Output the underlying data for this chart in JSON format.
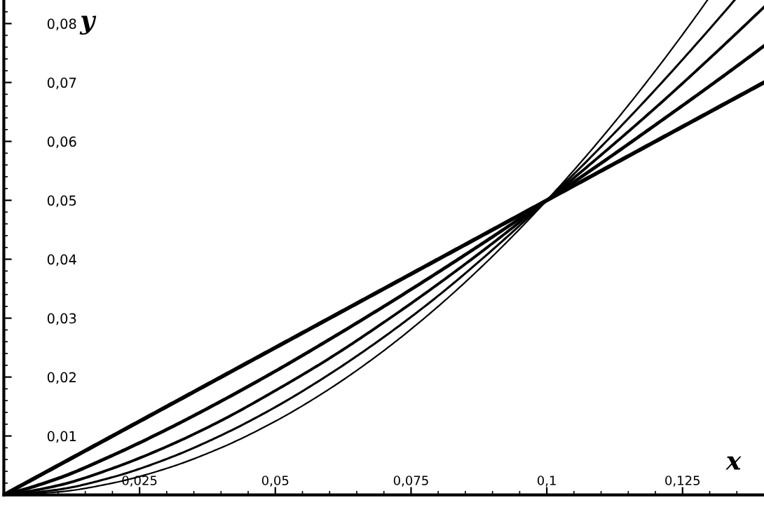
{
  "chart_data": {
    "type": "line",
    "xlabel": "x",
    "ylabel": "y",
    "xlim": [
      0,
      0.14
    ],
    "ylim": [
      0,
      0.084
    ],
    "xticks": [
      {
        "value": 0.005,
        "label": null
      },
      {
        "value": 0.01,
        "label": null
      },
      {
        "value": 0.015,
        "label": null
      },
      {
        "value": 0.02,
        "label": null
      },
      {
        "value": 0.025,
        "label": "0,025"
      },
      {
        "value": 0.03,
        "label": null
      },
      {
        "value": 0.035,
        "label": null
      },
      {
        "value": 0.04,
        "label": null
      },
      {
        "value": 0.045,
        "label": null
      },
      {
        "value": 0.05,
        "label": "0,05"
      },
      {
        "value": 0.055,
        "label": null
      },
      {
        "value": 0.06,
        "label": null
      },
      {
        "value": 0.065,
        "label": null
      },
      {
        "value": 0.07,
        "label": null
      },
      {
        "value": 0.075,
        "label": "0,075"
      },
      {
        "value": 0.08,
        "label": null
      },
      {
        "value": 0.085,
        "label": null
      },
      {
        "value": 0.09,
        "label": null
      },
      {
        "value": 0.095,
        "label": null
      },
      {
        "value": 0.1,
        "label": "0,1"
      },
      {
        "value": 0.105,
        "label": null
      },
      {
        "value": 0.11,
        "label": null
      },
      {
        "value": 0.115,
        "label": null
      },
      {
        "value": 0.12,
        "label": null
      },
      {
        "value": 0.125,
        "label": "0,125"
      },
      {
        "value": 0.13,
        "label": null
      },
      {
        "value": 0.135,
        "label": null
      }
    ],
    "yticks": [
      {
        "value": 0.002,
        "label": null
      },
      {
        "value": 0.004,
        "label": null
      },
      {
        "value": 0.006,
        "label": null
      },
      {
        "value": 0.008,
        "label": null
      },
      {
        "value": 0.01,
        "label": "0,01"
      },
      {
        "value": 0.012,
        "label": null
      },
      {
        "value": 0.014,
        "label": null
      },
      {
        "value": 0.016,
        "label": null
      },
      {
        "value": 0.018,
        "label": null
      },
      {
        "value": 0.02,
        "label": "0,02"
      },
      {
        "value": 0.022,
        "label": null
      },
      {
        "value": 0.024,
        "label": null
      },
      {
        "value": 0.026,
        "label": null
      },
      {
        "value": 0.028,
        "label": null
      },
      {
        "value": 0.03,
        "label": "0,03"
      },
      {
        "value": 0.032,
        "label": null
      },
      {
        "value": 0.034,
        "label": null
      },
      {
        "value": 0.036,
        "label": null
      },
      {
        "value": 0.038,
        "label": null
      },
      {
        "value": 0.04,
        "label": "0,04"
      },
      {
        "value": 0.042,
        "label": null
      },
      {
        "value": 0.044,
        "label": null
      },
      {
        "value": 0.046,
        "label": null
      },
      {
        "value": 0.048,
        "label": null
      },
      {
        "value": 0.05,
        "label": "0,05"
      },
      {
        "value": 0.052,
        "label": null
      },
      {
        "value": 0.054,
        "label": null
      },
      {
        "value": 0.056,
        "label": null
      },
      {
        "value": 0.058,
        "label": null
      },
      {
        "value": 0.06,
        "label": "0,06"
      },
      {
        "value": 0.062,
        "label": null
      },
      {
        "value": 0.064,
        "label": null
      },
      {
        "value": 0.066,
        "label": null
      },
      {
        "value": 0.068,
        "label": null
      },
      {
        "value": 0.07,
        "label": "0,07"
      },
      {
        "value": 0.072,
        "label": null
      },
      {
        "value": 0.074,
        "label": null
      },
      {
        "value": 0.076,
        "label": null
      },
      {
        "value": 0.078,
        "label": null
      },
      {
        "value": 0.08,
        "label": "0,08"
      },
      {
        "value": 0.082,
        "label": null
      }
    ],
    "grid": false,
    "marker": "none",
    "line_style": "solid",
    "series": [
      {
        "color": "#000000",
        "x": [
          0,
          0.01,
          0.02,
          0.03,
          0.04,
          0.05,
          0.06,
          0.07,
          0.08,
          0.09,
          0.1,
          0.11,
          0.12,
          0.13,
          0.14
        ],
        "values": [
          0,
          0.005,
          0.01,
          0.015,
          0.02,
          0.025,
          0.03,
          0.035,
          0.04,
          0.045,
          0.05,
          0.055,
          0.06,
          0.065,
          0.07
        ]
      },
      {
        "color": "#000000",
        "x": [
          0,
          0.01,
          0.02,
          0.03,
          0.04,
          0.05,
          0.06,
          0.07,
          0.08,
          0.09,
          0.1,
          0.11,
          0.12,
          0.13,
          0.14
        ],
        "values": [
          0,
          0.0028,
          0.0067,
          0.0111,
          0.0159,
          0.021,
          0.0264,
          0.032,
          0.0378,
          0.0438,
          0.05,
          0.0563,
          0.0628,
          0.0694,
          0.0762
        ]
      },
      {
        "color": "#000000",
        "x": [
          0,
          0.01,
          0.02,
          0.03,
          0.04,
          0.05,
          0.06,
          0.07,
          0.08,
          0.09,
          0.1,
          0.11,
          0.12,
          0.13,
          0.14
        ],
        "values": [
          0,
          0.0016,
          0.0045,
          0.0082,
          0.0126,
          0.0177,
          0.0232,
          0.0293,
          0.0358,
          0.0427,
          0.05,
          0.0577,
          0.0657,
          0.0741,
          0.0828
        ]
      },
      {
        "color": "#000000",
        "x": [
          0,
          0.01,
          0.02,
          0.03,
          0.04,
          0.05,
          0.06,
          0.07,
          0.08,
          0.09,
          0.1,
          0.11,
          0.12,
          0.13,
          0.1346
        ],
        "values": [
          0,
          0.0009,
          0.003,
          0.0061,
          0.0101,
          0.0149,
          0.0205,
          0.0268,
          0.0338,
          0.0416,
          0.05,
          0.0591,
          0.0688,
          0.0791,
          0.084
        ]
      },
      {
        "color": "#000000",
        "x": [
          0,
          0.01,
          0.02,
          0.03,
          0.04,
          0.05,
          0.06,
          0.07,
          0.08,
          0.09,
          0.1,
          0.11,
          0.12,
          0.1296
        ],
        "values": [
          0,
          0.0005,
          0.002,
          0.0045,
          0.008,
          0.0125,
          0.018,
          0.0245,
          0.032,
          0.0405,
          0.05,
          0.0605,
          0.072,
          0.084
        ]
      }
    ]
  }
}
